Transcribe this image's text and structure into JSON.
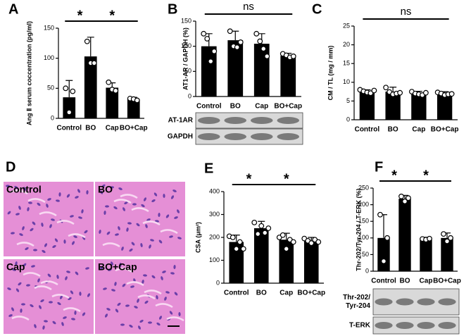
{
  "chart_data": [
    {
      "type": "bar",
      "panel": "A",
      "ylabel": "Ang Ⅱ serum coccentration  (pg/ml)",
      "categories": [
        "Control",
        "BO",
        "Cap",
        "BO+Cap"
      ],
      "values": [
        35,
        103,
        51,
        32
      ],
      "errors": [
        28,
        32,
        8,
        3
      ],
      "points": [
        [
          50,
          10,
          45
        ],
        [
          128,
          92,
          92
        ],
        [
          60,
          48,
          46
        ],
        [
          33,
          32,
          30
        ]
      ],
      "ylim": [
        0,
        150
      ],
      "yticks": [
        0,
        50,
        100,
        150
      ],
      "annotations": [
        "*",
        "*"
      ],
      "color": "#000000"
    },
    {
      "type": "bar",
      "panel": "B",
      "ylabel": "AT1-AR / GAPDH (%)",
      "categories": [
        "Control",
        "BO",
        "Cap",
        "BO+Cap"
      ],
      "values": [
        100,
        112,
        105,
        81
      ],
      "errors": [
        25,
        18,
        20,
        5
      ],
      "points": [
        [
          125,
          115,
          70,
          90
        ],
        [
          130,
          100,
          98,
          108
        ],
        [
          125,
          110,
          95,
          80
        ],
        [
          85,
          82,
          78,
          80
        ]
      ],
      "ylim": [
        0,
        150
      ],
      "yticks": [
        0,
        50,
        100,
        150
      ],
      "annotations": [
        "ns"
      ],
      "blots": [
        [
          "AT-1AR"
        ],
        [
          "GAPDH"
        ]
      ],
      "color": "#000000"
    },
    {
      "type": "bar",
      "panel": "C",
      "ylabel": "CM / TL  (mg / mm)",
      "categories": [
        "Control",
        "BO",
        "Cap",
        "BO+Cap"
      ],
      "values": [
        7.5,
        7.5,
        7,
        7
      ],
      "errors": [
        0.5,
        1.2,
        0.6,
        0.5
      ],
      "points": [
        [
          8,
          7.6,
          7.3,
          7.1,
          7.8
        ],
        [
          8.6,
          7.4,
          6.8,
          7,
          7.2
        ],
        [
          7.5,
          7,
          6.8,
          6.6,
          7.2
        ],
        [
          7.3,
          7,
          6.6,
          6.8,
          6.9
        ]
      ],
      "ylim": [
        0,
        25
      ],
      "yticks": [
        0,
        5,
        10,
        15,
        20,
        25
      ],
      "annotations": [
        "ns"
      ],
      "color": "#000000"
    },
    {
      "type": "image-grid",
      "panel": "D",
      "labels": [
        "Control",
        "BO",
        "Cap",
        "BO+Cap"
      ]
    },
    {
      "type": "bar",
      "panel": "E",
      "ylabel": "CSA (μm²)",
      "categories": [
        "Control",
        "BO",
        "Cap",
        "BO+Cap"
      ],
      "values": [
        180,
        240,
        190,
        185
      ],
      "errors": [
        30,
        30,
        28,
        15
      ],
      "points": [
        [
          205,
          200,
          150,
          180,
          150
        ],
        [
          265,
          215,
          250,
          220,
          240
        ],
        [
          200,
          210,
          150,
          190,
          180
        ],
        [
          195,
          185,
          175,
          190,
          180
        ]
      ],
      "ylim": [
        0,
        400
      ],
      "yticks": [
        0,
        100,
        200,
        300,
        400
      ],
      "annotations": [
        "*",
        "*"
      ],
      "color": "#000000"
    },
    {
      "type": "bar",
      "panel": "F",
      "ylabel": "Thr-202/Tyr-204 / T-ERK (%)",
      "categories": [
        "Control",
        "BO",
        "Cap",
        "BO+Cap"
      ],
      "values": [
        100,
        218,
        97,
        100
      ],
      "errors": [
        70,
        10,
        5,
        15
      ],
      "points": [
        [
          170,
          30,
          100
        ],
        [
          225,
          210,
          220
        ],
        [
          97,
          95,
          98
        ],
        [
          112,
          90,
          100
        ]
      ],
      "ylim": [
        0,
        250
      ],
      "yticks": [
        0,
        50,
        100,
        150,
        200,
        250
      ],
      "annotations": [
        "*",
        "*"
      ],
      "blots": [
        [
          "Thr-202/",
          "Tyr-204"
        ],
        [
          "T-ERK"
        ]
      ],
      "color": "#000000"
    }
  ]
}
